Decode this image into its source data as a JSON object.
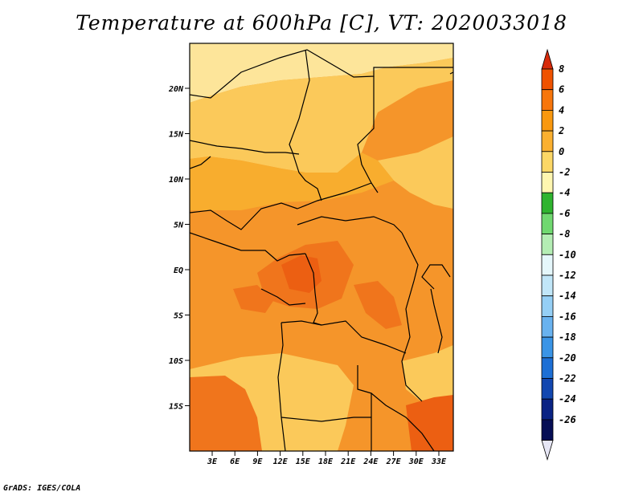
{
  "title": "Temperature at 600hPa [C], VT: 2020033018",
  "credit": "GrADS: IGES/COLA",
  "map": {
    "lat_labels": [
      "20N",
      "15N",
      "10N",
      "5N",
      "EQ",
      "5S",
      "10S",
      "15S"
    ],
    "lon_labels": [
      "3E",
      "6E",
      "9E",
      "12E",
      "15E",
      "18E",
      "21E",
      "24E",
      "27E",
      "30E",
      "33E"
    ]
  },
  "colorbar": {
    "labels": [
      "8",
      "6",
      "4",
      "2",
      "0",
      "-2",
      "-4",
      "-6",
      "-8",
      "-10",
      "-12",
      "-14",
      "-16",
      "-18",
      "-20",
      "-22",
      "-24",
      "-26"
    ],
    "colors": [
      "#d72a0a",
      "#ef5200",
      "#f7760c",
      "#f9980f",
      "#fbb030",
      "#fcd766",
      "#fff6b0",
      "#2fb42f",
      "#70d870",
      "#b4edb4",
      "#e5f7fb",
      "#c1e6f8",
      "#95cff5",
      "#69b2ef",
      "#3a94e6",
      "#1d6fd5",
      "#1247b0",
      "#0a2384",
      "#060e55",
      "#e6e6f5"
    ]
  },
  "field_colors": {
    "pale": "#fde59a",
    "light": "#fbc95a",
    "mid": "#f8ad2e",
    "warm": "#f5952a",
    "hot": "#f0751c",
    "hottest": "#ec5f12"
  }
}
